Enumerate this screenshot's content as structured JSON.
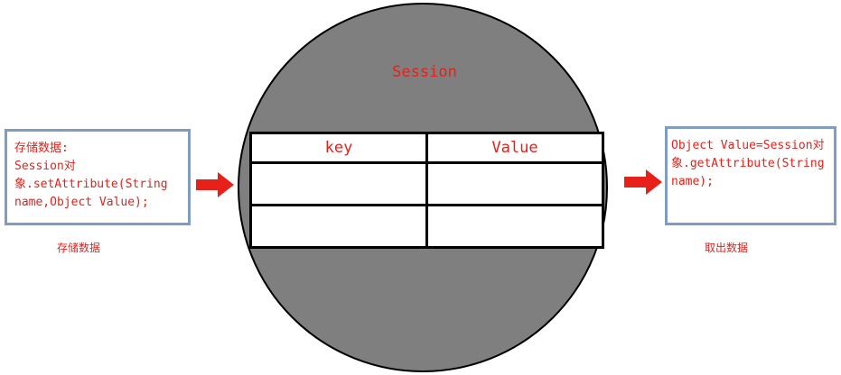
{
  "diagram": {
    "session_label": "Session",
    "table": {
      "headers": [
        "key",
        "Value"
      ],
      "rows": [
        [
          "",
          ""
        ],
        [
          "",
          ""
        ]
      ]
    },
    "store_box": {
      "lines": [
        "存储数据:",
        "Session对",
        "象.setAttribute(String",
        "name,Object Value);"
      ]
    },
    "store_caption": "存储数据",
    "retrieve_box": {
      "lines": [
        "Object Value=Session对",
        "象.getAttribute(String",
        "name);"
      ]
    },
    "retrieve_caption": "取出数据"
  },
  "colors": {
    "text_red": "#e8201a",
    "circle_gray": "#7f7f7f",
    "box_border_blue": "#7f9cc2",
    "arrow_red": "#e8201a"
  },
  "icons": [
    "right-arrow-icon",
    "right-arrow-icon"
  ]
}
